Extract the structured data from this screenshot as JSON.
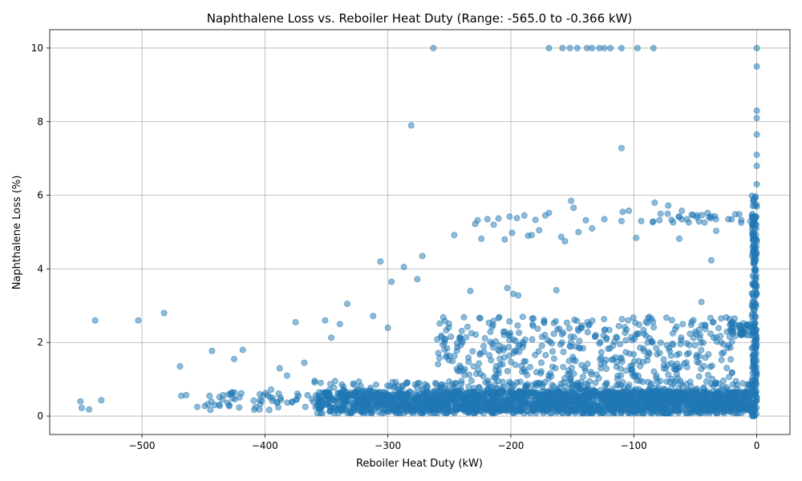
{
  "chart_data": {
    "type": "scatter",
    "title": "Naphthalene Loss vs. Reboiler Heat Duty (Range: -565.0 to -0.366 kW)",
    "xlabel": "Reboiler Heat Duty (kW)",
    "ylabel": "Naphthalene Loss (%)",
    "xlim": [
      -575,
      27
    ],
    "ylim": [
      -0.5,
      10.5
    ],
    "xticks": [
      -500,
      -400,
      -300,
      -200,
      -100,
      0
    ],
    "yticks": [
      0,
      2,
      4,
      6,
      8,
      10
    ],
    "grid": true,
    "color": "#1f77b4",
    "outliers": [
      [
        -550,
        0.4
      ],
      [
        -549,
        0.22
      ],
      [
        -543,
        0.18
      ],
      [
        -538,
        2.6
      ],
      [
        -533,
        0.43
      ],
      [
        -503,
        2.6
      ],
      [
        -482,
        2.8
      ],
      [
        -469,
        1.35
      ],
      [
        -468,
        0.55
      ],
      [
        -464,
        0.57
      ],
      [
        -455,
        0.25
      ],
      [
        -445,
        0.55
      ],
      [
        -443,
        1.77
      ],
      [
        -441,
        0.3
      ],
      [
        -437,
        0.52
      ],
      [
        -434,
        0.57
      ],
      [
        -425,
        1.55
      ],
      [
        -418,
        1.8
      ],
      [
        -395,
        0.72
      ],
      [
        -388,
        1.3
      ],
      [
        -382,
        1.1
      ],
      [
        -375,
        2.55
      ],
      [
        -368,
        1.45
      ],
      [
        -351,
        2.6
      ],
      [
        -346,
        2.13
      ],
      [
        -339,
        2.5
      ],
      [
        -333,
        3.05
      ],
      [
        -312,
        2.72
      ],
      [
        -306,
        4.2
      ],
      [
        -300,
        2.4
      ],
      [
        -297,
        3.65
      ],
      [
        -287,
        4.05
      ],
      [
        -281,
        7.9
      ],
      [
        -276,
        3.72
      ],
      [
        -272,
        4.35
      ],
      [
        -263,
        10.0
      ],
      [
        -246,
        4.92
      ],
      [
        -233,
        3.4
      ],
      [
        -229,
        5.22
      ],
      [
        -227,
        5.32
      ],
      [
        -224,
        4.82
      ],
      [
        -219,
        5.35
      ],
      [
        -214,
        5.2
      ],
      [
        -210,
        5.37
      ],
      [
        -205,
        4.8
      ],
      [
        -203,
        3.48
      ],
      [
        -201,
        5.42
      ],
      [
        -199,
        4.98
      ],
      [
        -198,
        3.32
      ],
      [
        -195,
        5.38
      ],
      [
        -194,
        3.28
      ],
      [
        -189,
        5.45
      ],
      [
        -186,
        4.9
      ],
      [
        -183,
        4.92
      ],
      [
        -180,
        5.33
      ],
      [
        -177,
        5.05
      ],
      [
        -172,
        5.45
      ],
      [
        -169,
        5.52
      ],
      [
        -163,
        3.42
      ],
      [
        -159,
        4.87
      ],
      [
        -156,
        4.75
      ],
      [
        -151,
        5.85
      ],
      [
        -149,
        5.66
      ],
      [
        -145,
        5.0
      ],
      [
        -139,
        5.32
      ],
      [
        -134,
        5.1
      ],
      [
        -124,
        5.35
      ],
      [
        -110,
        5.3
      ],
      [
        -109,
        5.55
      ],
      [
        -104,
        5.58
      ],
      [
        -98,
        4.84
      ],
      [
        -94,
        5.3
      ],
      [
        -83,
        5.8
      ],
      [
        -72,
        5.72
      ],
      [
        -63,
        4.82
      ],
      [
        -61,
        5.58
      ],
      [
        -49,
        5.4
      ],
      [
        -40,
        5.52
      ],
      [
        -37,
        4.23
      ],
      [
        -33,
        5.03
      ],
      [
        -110,
        7.28
      ],
      [
        0,
        9.5
      ],
      [
        0,
        8.3
      ],
      [
        0,
        8.1
      ],
      [
        0,
        7.65
      ],
      [
        0,
        7.1
      ],
      [
        0,
        6.8
      ],
      [
        0,
        6.3
      ],
      [
        -45,
        3.1
      ],
      [
        -18,
        2.65
      ]
    ],
    "top_row": [
      [
        -169,
        10.0
      ],
      [
        -158,
        10.0
      ],
      [
        -152,
        10.0
      ],
      [
        -146,
        10.0
      ],
      [
        -138,
        10.0
      ],
      [
        -134,
        10.0
      ],
      [
        -128,
        10.0
      ],
      [
        -124,
        10.0
      ],
      [
        -119,
        10.0
      ],
      [
        -110,
        10.0
      ],
      [
        -97,
        10.0
      ],
      [
        -84,
        10.0
      ],
      [
        0,
        10.0
      ]
    ],
    "dense_region": {
      "x_range": [
        -360,
        -5
      ],
      "y_range": [
        0.08,
        1.0
      ],
      "baseline": 0.32,
      "mid_band_y_range": [
        1.0,
        2.7
      ],
      "vertical_cluster": {
        "x": 0,
        "y_range": [
          0,
          6.0
        ]
      }
    }
  }
}
